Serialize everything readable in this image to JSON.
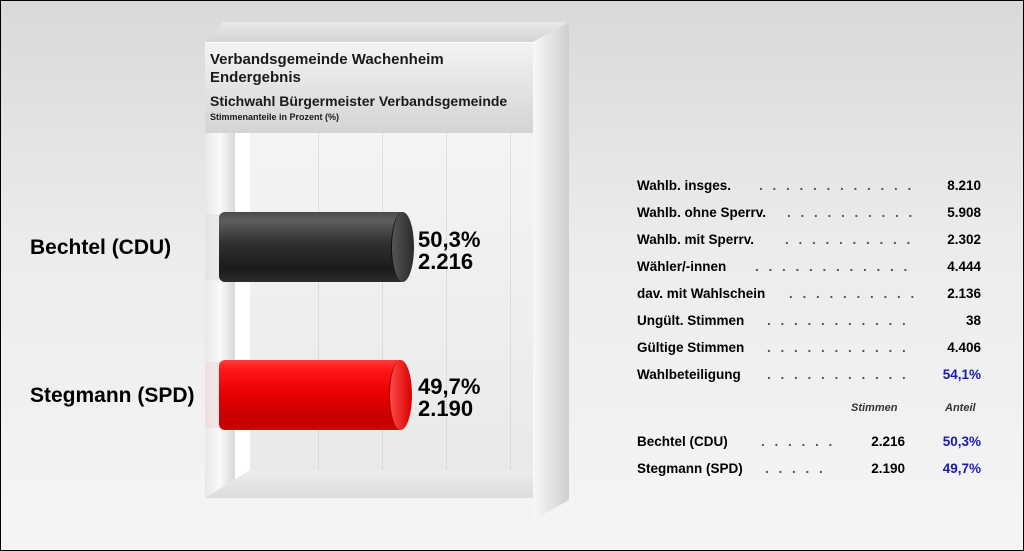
{
  "chart_data": {
    "type": "bar",
    "orientation": "horizontal",
    "title": "Verbandsgemeinde Wachenheim",
    "subtitle_lines": [
      "Endergebnis",
      "Stichwahl Bürgermeister Verbandsgemeinde"
    ],
    "unit_note": "Stimmenanteile in Prozent (%)",
    "categories": [
      "Bechtel (CDU)",
      "Stegmann (SPD)"
    ],
    "values": [
      50.3,
      49.7
    ],
    "percent_labels": [
      "50,3%",
      "49,7%"
    ],
    "vote_labels": [
      "2.216",
      "2.190"
    ],
    "colors": [
      "#2a2a2a",
      "#ee0000"
    ],
    "xlim": [
      0,
      100
    ]
  },
  "stats": [
    {
      "label": "Wahlb. insges.",
      "value": "8.210"
    },
    {
      "label": "Wahlb. ohne Sperrv.",
      "value": "5.908"
    },
    {
      "label": "Wahlb. mit Sperrv.",
      "value": "2.302"
    },
    {
      "label": "Wähler/-innen",
      "value": "4.444"
    },
    {
      "label": "dav. mit Wahlschein",
      "value": "2.136"
    },
    {
      "label": "Ungült. Stimmen",
      "value": "38"
    },
    {
      "label": "Gültige Stimmen",
      "value": "4.406"
    },
    {
      "label": "Wahlbeteiligung",
      "value": "54,1%"
    }
  ],
  "results_header": {
    "votes": "Stimmen",
    "share": "Anteil"
  },
  "results": [
    {
      "label": "Bechtel (CDU)",
      "votes": "2.216",
      "share": "50,3%"
    },
    {
      "label": "Stegmann (SPD)",
      "votes": "2.190",
      "share": "49,7%"
    }
  ],
  "accent_color": "#1b1ba8"
}
